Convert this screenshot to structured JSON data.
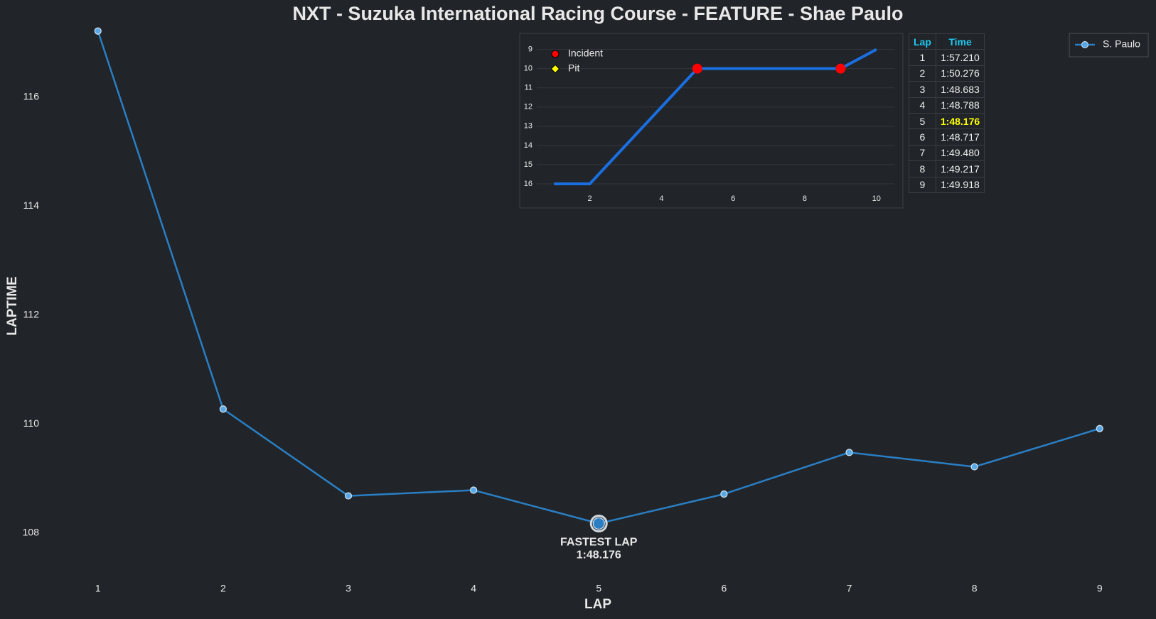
{
  "chart_data": [
    {
      "type": "line",
      "title": "NXT - Suzuka International Racing Course - FEATURE - Shae Paulo",
      "x_label": "LAP",
      "y_label": "LAPTIME",
      "x": [
        1,
        2,
        3,
        4,
        5,
        6,
        7,
        8,
        9
      ],
      "series": [
        {
          "name": "S. Paulo",
          "color": "#2a7fc4",
          "values": [
            117.21,
            110.276,
            108.683,
            108.788,
            108.176,
            108.717,
            109.48,
            109.217,
            109.918
          ]
        }
      ],
      "xlim": [
        0.57,
        9.45
      ],
      "ylim": [
        107.18,
        117.78
      ],
      "xticks": [
        1,
        2,
        3,
        4,
        5,
        6,
        7,
        8,
        9
      ],
      "yticks": [
        108,
        110,
        112,
        114,
        116
      ],
      "annotation": [
        "FASTEST LAP",
        "1:48.176"
      ],
      "legend": "upper right",
      "grid": false
    },
    {
      "type": "line",
      "x": [
        1,
        2,
        3,
        4,
        5,
        6,
        7,
        8,
        9,
        10
      ],
      "values": [
        16,
        16,
        14,
        12,
        10,
        10,
        10,
        10,
        10,
        9
      ],
      "color": "#1a6fe0",
      "markers": [
        {
          "name": "Incident",
          "color": "#ff0000",
          "x": [
            5,
            9
          ]
        },
        {
          "name": "Pit",
          "color": "#ffff00",
          "x": []
        }
      ],
      "xlim": [
        0.52,
        10.5
      ],
      "ylim": [
        16.26,
        8.46
      ],
      "xticks": [
        2,
        4,
        6,
        8,
        10
      ],
      "yticks": [
        9,
        10,
        11,
        12,
        13,
        14,
        15,
        16
      ],
      "legend": "upper left",
      "grid": true
    }
  ],
  "table": {
    "columns": [
      "Lap",
      "Time"
    ],
    "rows": [
      [
        1,
        "1:57.210"
      ],
      [
        2,
        "1:50.276"
      ],
      [
        3,
        "1:48.683"
      ],
      [
        4,
        "1:48.788"
      ],
      [
        5,
        "1:48.176"
      ],
      [
        6,
        "1:48.717"
      ],
      [
        7,
        "1:49.480"
      ],
      [
        8,
        "1:49.217"
      ],
      [
        9,
        "1:49.918"
      ]
    ]
  }
}
